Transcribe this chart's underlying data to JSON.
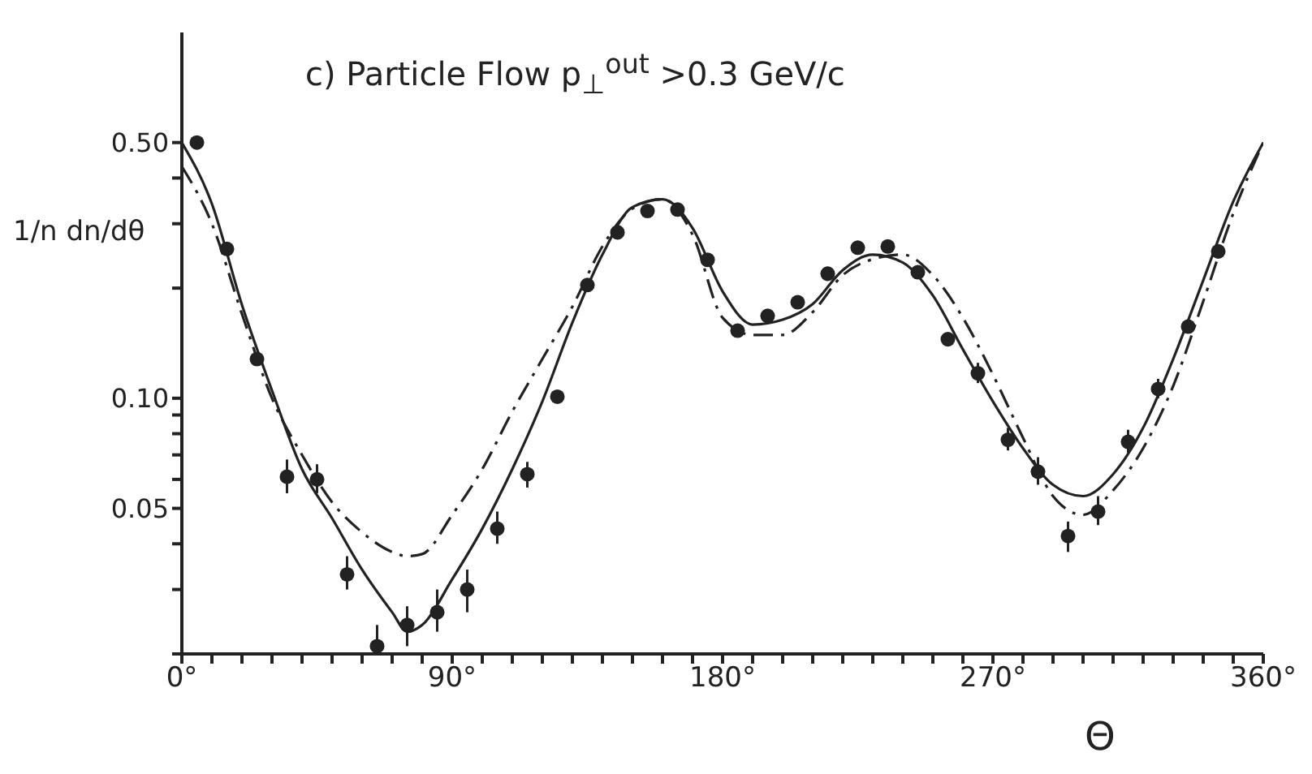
{
  "chart_data": {
    "type": "scatter",
    "title": "c) Particle Flow  p$_{⊥}$$^{out}$ >0.3 GeV/c",
    "xlabel": "Θ",
    "ylabel": "1/n dn/dθ",
    "log": "y",
    "xlim": [
      0,
      360
    ],
    "xticks": [
      {
        "value": 0,
        "label": "0°"
      },
      {
        "value": 10,
        "label": null
      },
      {
        "value": 20,
        "label": null
      },
      {
        "value": 30,
        "label": null
      },
      {
        "value": 40,
        "label": null
      },
      {
        "value": 50,
        "label": null
      },
      {
        "value": 60,
        "label": null
      },
      {
        "value": 70,
        "label": null
      },
      {
        "value": 80,
        "label": null
      },
      {
        "value": 90,
        "label": "90°"
      },
      {
        "value": 100,
        "label": null
      },
      {
        "value": 110,
        "label": null
      },
      {
        "value": 120,
        "label": null
      },
      {
        "value": 130,
        "label": null
      },
      {
        "value": 140,
        "label": null
      },
      {
        "value": 150,
        "label": null
      },
      {
        "value": 160,
        "label": null
      },
      {
        "value": 170,
        "label": null
      },
      {
        "value": 180,
        "label": "180°"
      },
      {
        "value": 190,
        "label": null
      },
      {
        "value": 200,
        "label": null
      },
      {
        "value": 210,
        "label": null
      },
      {
        "value": 220,
        "label": null
      },
      {
        "value": 230,
        "label": null
      },
      {
        "value": 240,
        "label": null
      },
      {
        "value": 250,
        "label": null
      },
      {
        "value": 260,
        "label": null
      },
      {
        "value": 270,
        "label": "270°"
      },
      {
        "value": 280,
        "label": null
      },
      {
        "value": 290,
        "label": null
      },
      {
        "value": 300,
        "label": null
      },
      {
        "value": 310,
        "label": null
      },
      {
        "value": 320,
        "label": null
      },
      {
        "value": 330,
        "label": null
      },
      {
        "value": 340,
        "label": null
      },
      {
        "value": 350,
        "label": null
      },
      {
        "value": 360,
        "label": "360°"
      }
    ],
    "ylim": [
      0.02,
      1
    ],
    "yticks": [
      {
        "value": 0.02,
        "label": null
      },
      {
        "value": 0.03,
        "label": null
      },
      {
        "value": 0.04,
        "label": null
      },
      0.05,
      {
        "value": 0.06,
        "label": null
      },
      {
        "value": 0.07,
        "label": null
      },
      {
        "value": 0.08,
        "label": null
      },
      {
        "value": 0.09,
        "label": null
      },
      {
        "value": 0.1,
        "label": "0.10"
      },
      {
        "value": 0.2,
        "label": null
      },
      {
        "value": 0.3,
        "label": null
      },
      {
        "value": 0.4,
        "label": null
      },
      {
        "value": 0.5,
        "label": "0.50"
      }
    ],
    "series": [
      {
        "color": "#222222",
        "marker": "circle",
        "x": [
          5,
          15,
          25,
          35,
          45,
          55,
          65,
          75,
          85,
          95,
          105,
          115,
          125,
          135,
          145,
          155,
          165,
          175,
          185,
          195,
          205,
          215,
          225,
          235,
          245,
          255,
          265,
          275,
          285,
          295,
          305,
          315,
          325,
          335,
          345
        ],
        "values": [
          0.5,
          0.256,
          0.128,
          0.061,
          0.06,
          0.033,
          0.021,
          0.024,
          0.026,
          0.03,
          0.044,
          0.062,
          0.101,
          0.204,
          0.284,
          0.325,
          0.328,
          0.239,
          0.153,
          0.168,
          0.183,
          0.219,
          0.258,
          0.26,
          0.221,
          0.145,
          0.117,
          0.077,
          0.063,
          0.042,
          0.049,
          0.076,
          0.106,
          0.157,
          0.252
        ],
        "errors": [
          null,
          null,
          null,
          [
            0.055,
            0.068
          ],
          [
            0.055,
            0.066
          ],
          [
            0.03,
            0.037
          ],
          [
            0.02,
            0.024
          ],
          [
            0.021,
            0.027
          ],
          [
            0.023,
            0.03
          ],
          [
            0.026,
            0.034
          ],
          [
            0.04,
            0.049
          ],
          [
            0.057,
            0.067
          ],
          null,
          null,
          null,
          null,
          null,
          null,
          null,
          null,
          null,
          null,
          null,
          null,
          null,
          null,
          [
            0.11,
            0.125
          ],
          [
            0.072,
            0.083
          ],
          [
            0.058,
            0.069
          ],
          [
            0.038,
            0.046
          ],
          [
            0.045,
            0.054
          ],
          [
            0.071,
            0.082
          ],
          [
            0.1,
            0.113
          ],
          null,
          null
        ]
      },
      {
        "type": "line",
        "color": "#222222",
        "marker": "none",
        "line_style": "solid",
        "x": [
          0,
          10,
          20,
          30,
          40,
          50,
          60,
          70,
          75,
          80,
          90,
          100,
          110,
          120,
          130,
          140,
          150,
          160,
          170,
          180,
          190,
          200,
          210,
          220,
          230,
          240,
          250,
          260,
          270,
          280,
          290,
          300,
          310,
          320,
          330,
          340,
          350,
          360
        ],
        "values": [
          0.5,
          0.34,
          0.18,
          0.105,
          0.064,
          0.047,
          0.034,
          0.026,
          0.023,
          0.024,
          0.032,
          0.044,
          0.064,
          0.098,
          0.161,
          0.247,
          0.333,
          0.35,
          0.292,
          0.196,
          0.159,
          0.164,
          0.181,
          0.224,
          0.247,
          0.235,
          0.191,
          0.136,
          0.098,
          0.073,
          0.058,
          0.054,
          0.062,
          0.083,
          0.128,
          0.21,
          0.345,
          0.5
        ]
      },
      {
        "type": "line",
        "color": "#222222",
        "marker": "none",
        "line_style": "dashed",
        "x": [
          0,
          10,
          20,
          30,
          40,
          50,
          60,
          70,
          75,
          80,
          90,
          100,
          110,
          120,
          130,
          140,
          150,
          160,
          170,
          180,
          190,
          200,
          210,
          220,
          230,
          240,
          250,
          260,
          270,
          280,
          290,
          300,
          310,
          320,
          330,
          340,
          350,
          360
        ],
        "values": [
          0.43,
          0.3,
          0.17,
          0.1,
          0.07,
          0.052,
          0.043,
          0.038,
          0.037,
          0.0375,
          0.048,
          0.064,
          0.092,
          0.128,
          0.178,
          0.26,
          0.33,
          0.35,
          0.28,
          0.166,
          0.149,
          0.149,
          0.172,
          0.217,
          0.24,
          0.247,
          0.217,
          0.166,
          0.116,
          0.078,
          0.054,
          0.048,
          0.056,
          0.073,
          0.108,
          0.184,
          0.32,
          0.5
        ]
      }
    ]
  }
}
